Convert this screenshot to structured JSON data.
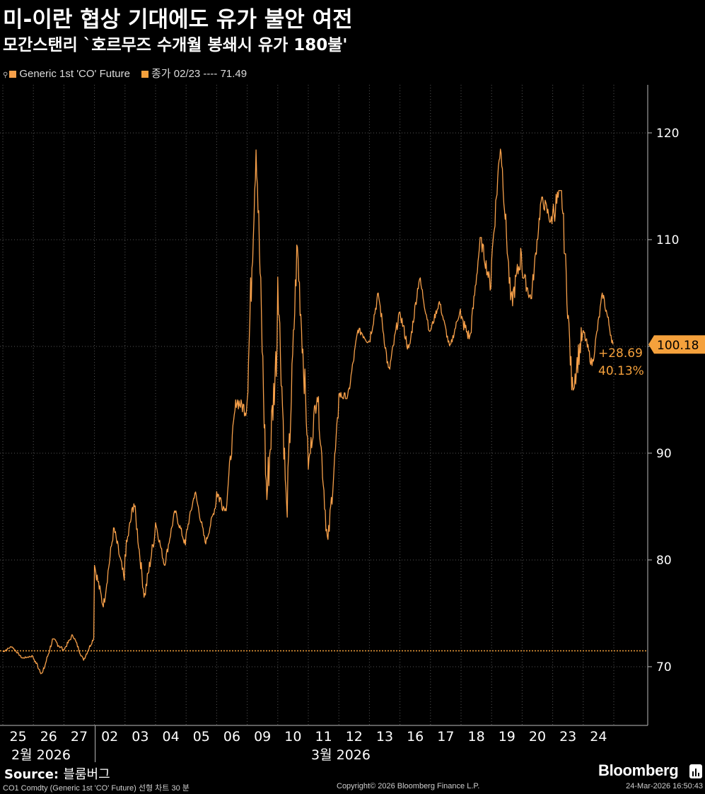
{
  "header": {
    "title": "미-이란 협상 기대에도 유가 불안 여전",
    "subtitle": "모간스탠리 `호르무즈 수개월 봉쇄시 유가 180불'"
  },
  "legend": {
    "series_label": "Generic 1st 'CO' Future",
    "close_label": "종가 02/23 ---- 71.49"
  },
  "colors": {
    "series": "#f7a04a",
    "close_line": "#f5a13c",
    "last_tag": "#f5a13c",
    "grid": "#555555",
    "background": "#000000"
  },
  "chart_data": {
    "type": "line",
    "series": [
      {
        "name": "Generic 1st 'CO' Future",
        "x": [
          "2026-02-25",
          "2026-02-26",
          "2026-02-27",
          "2026-03-02",
          "2026-03-03",
          "2026-03-04",
          "2026-03-05",
          "2026-03-06",
          "2026-03-09",
          "2026-03-10",
          "2026-03-11",
          "2026-03-12",
          "2026-03-13",
          "2026-03-16",
          "2026-03-17",
          "2026-03-18",
          "2026-03-19",
          "2026-03-20",
          "2026-03-23",
          "2026-03-24"
        ],
        "open": [
          71.4,
          70.8,
          71.6,
          79.5,
          80.5,
          83.5,
          82.4,
          86.4,
          95.0,
          106.5,
          88.5,
          95.5,
          100.5,
          103.2,
          101.5,
          102.6,
          108.0,
          107.0,
          112.5,
          101.5
        ],
        "high": [
          71.9,
          72.6,
          73.0,
          83.0,
          85.5,
          84.6,
          86.4,
          95.0,
          119.6,
          109.5,
          96.0,
          101.7,
          105.0,
          106.5,
          104.2,
          110.2,
          119.2,
          114.0,
          114.6,
          105.0
        ],
        "low": [
          70.8,
          69.3,
          70.6,
          75.6,
          76.5,
          79.5,
          81.5,
          84.6,
          85.6,
          84.0,
          81.2,
          95.1,
          97.5,
          99.5,
          99.8,
          100.7,
          103.8,
          104.4,
          95.9,
          98.2
        ],
        "close": [
          71.0,
          71.6,
          72.7,
          78.1,
          82.5,
          81.4,
          85.3,
          94.0,
          100.2,
          91.5,
          93.3,
          100.5,
          103.2,
          101.4,
          103.5,
          105.5,
          108.7,
          111.5,
          101.2,
          100.18
        ]
      }
    ],
    "x_tick_labels": [
      "25",
      "26",
      "27",
      "02",
      "03",
      "04",
      "05",
      "06",
      "09",
      "10",
      "11",
      "12",
      "13",
      "16",
      "17",
      "18",
      "19",
      "20",
      "23",
      "24"
    ],
    "month_labels": [
      "2월 2026",
      "3월 2026"
    ],
    "y_ticks": [
      70,
      80,
      90,
      100,
      110,
      120
    ],
    "y_tick_labels": [
      "70",
      "80",
      "90",
      "",
      "110",
      "120"
    ],
    "ylim": [
      64.5,
      124.5
    ],
    "reference_line": {
      "value": 71.49
    },
    "last_value_label": "100.18",
    "change_label": "+28.69",
    "change_pct_label": "40.13%",
    "grid": true,
    "legend_position": "top-left"
  },
  "footer": {
    "source_label": "Source:",
    "source_value": "블룸버그",
    "note": "CO1 Comdty (Generic 1st 'CO' Future) 선형 차트 30 분",
    "copyright": "Copyright© 2026 Bloomberg Finance L.P.",
    "timestamp": "24-Mar-2026 16:50:43",
    "brand": "Bloomberg"
  }
}
